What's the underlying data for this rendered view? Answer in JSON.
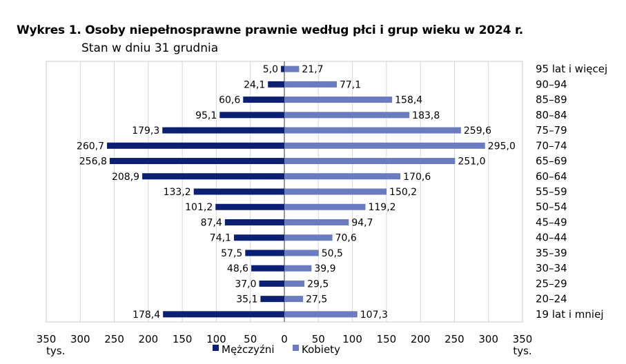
{
  "chart_data": {
    "type": "bar",
    "orientation": "horizontal-population-pyramid",
    "title": "Wykres 1. Osoby niepełnosprawne prawnie według płci i grup wieku w 2024 r.",
    "subtitle": "Stan w dniu 31 grudnia",
    "categories": [
      "95 lat i więcej",
      "90–94",
      "85–89",
      "80–84",
      "75–79",
      "70–74",
      "65–69",
      "60–64",
      "55–59",
      "50–54",
      "45–49",
      "40–44",
      "35–39",
      "30–34",
      "25–29",
      "20–24",
      "19 lat i mniej"
    ],
    "series": [
      {
        "name": "Mężczyźni",
        "color": "#0b1f73",
        "values": [
          5.0,
          24.1,
          60.6,
          95.1,
          179.3,
          260.7,
          256.8,
          208.9,
          133.2,
          101.2,
          87.4,
          74.1,
          57.5,
          48.6,
          37.0,
          35.1,
          178.4
        ],
        "labels": [
          "5,0",
          "24,1",
          "60,6",
          "95,1",
          "179,3",
          "260,7",
          "256,8",
          "208,9",
          "133,2",
          "101,2",
          "87,4",
          "74,1",
          "57,5",
          "48,6",
          "37,0",
          "35,1",
          "178,4"
        ]
      },
      {
        "name": "Kobiety",
        "color": "#6a7bbf",
        "values": [
          21.7,
          77.1,
          158.4,
          183.8,
          259.6,
          295.0,
          251.0,
          170.6,
          150.2,
          119.2,
          94.7,
          70.6,
          50.5,
          39.9,
          29.5,
          27.5,
          107.3
        ],
        "labels": [
          "21,7",
          "77,1",
          "158,4",
          "183,8",
          "259,6",
          "295,0",
          "251,0",
          "170,6",
          "150,2",
          "119,2",
          "94,7",
          "70,6",
          "50,5",
          "39,9",
          "29,5",
          "27,5",
          "107,3"
        ]
      }
    ],
    "x_ticks": [
      "350",
      "300",
      "250",
      "200",
      "150",
      "100",
      "50",
      "0",
      "50",
      "100",
      "150",
      "200",
      "250",
      "300",
      "350"
    ],
    "xlim": [
      -350,
      350
    ],
    "unit_label_left": "tys.",
    "unit_label_right": "tys.",
    "grid": true,
    "legend_position": "bottom-center"
  }
}
